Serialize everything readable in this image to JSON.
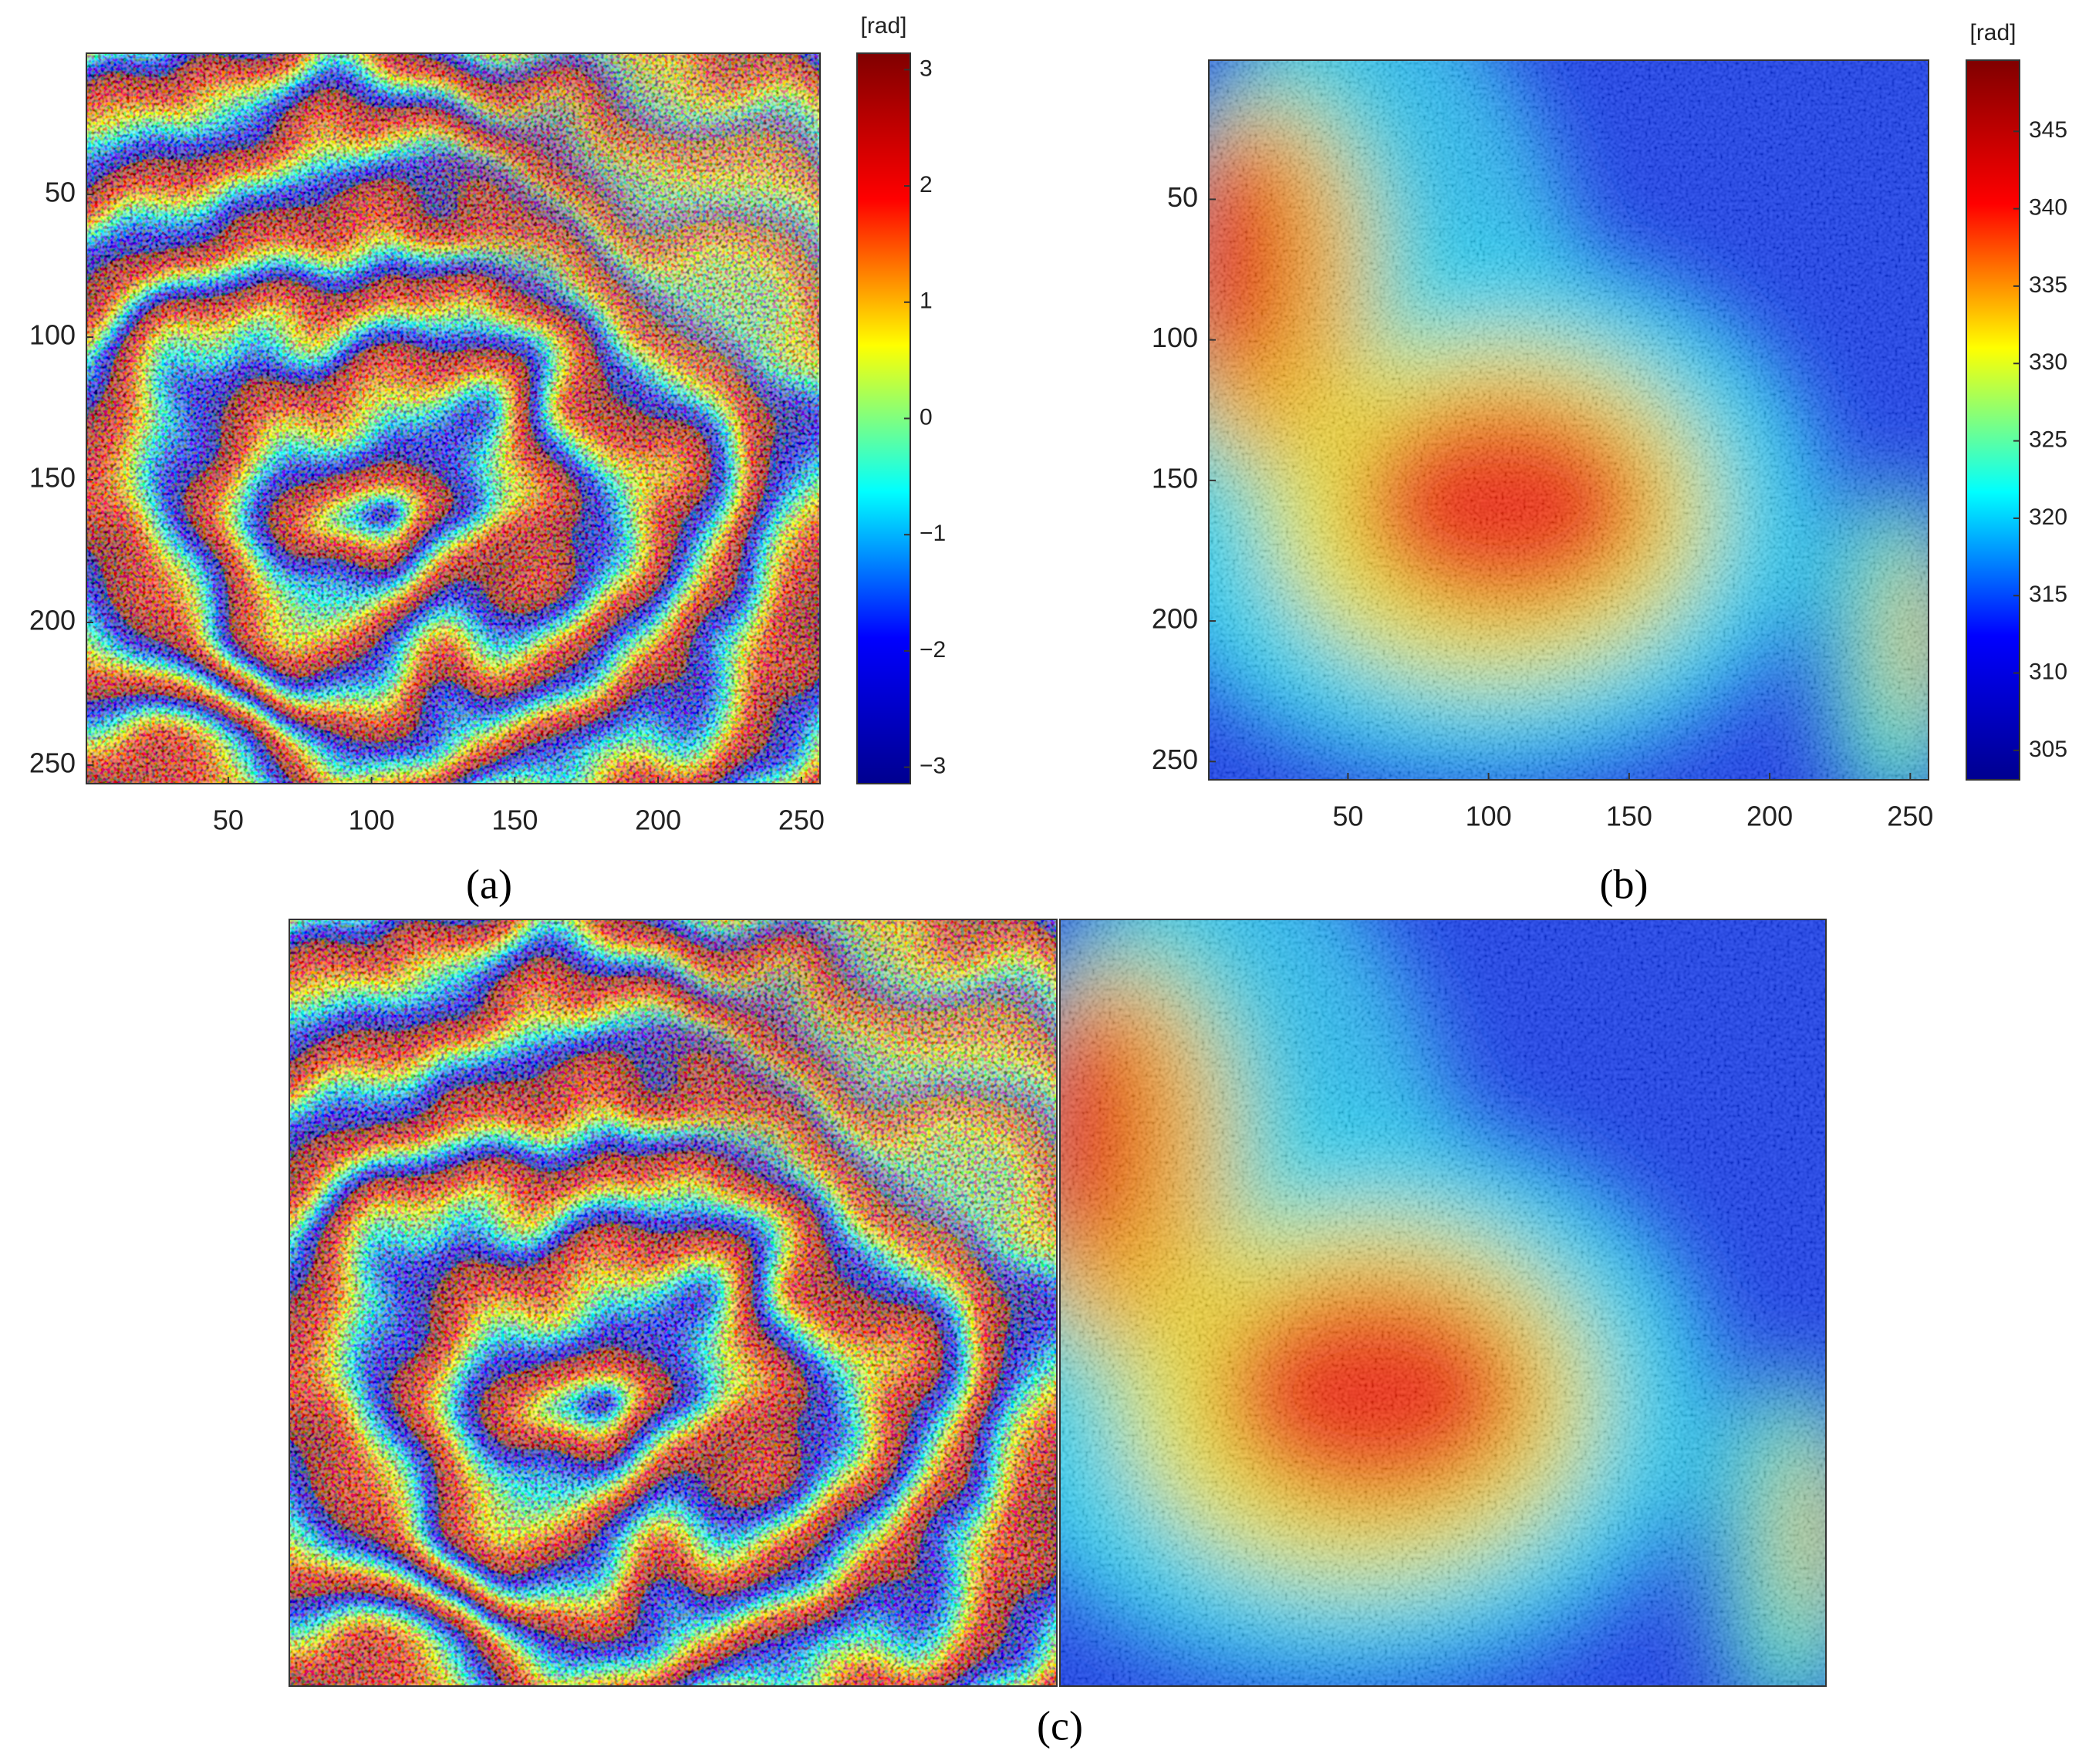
{
  "chart_data": [
    {
      "type": "image",
      "label": "(a)",
      "colorbar_label": "[rad]",
      "colormap": "jet",
      "xlim": [
        0.5,
        256.5
      ],
      "ylim": [
        0.5,
        256.5
      ],
      "xticks": [
        50,
        100,
        150,
        200,
        250
      ],
      "yticks": [
        50,
        100,
        150,
        200,
        250
      ],
      "clim": [
        -3.1416,
        3.1416
      ],
      "cticks": [
        {
          "value": -3,
          "label": "−3"
        },
        {
          "value": -2,
          "label": "−2"
        },
        {
          "value": -1,
          "label": "−1"
        },
        0,
        1,
        2,
        3
      ]
    },
    {
      "type": "image",
      "label": "(b)",
      "colorbar_label": "[rad]",
      "colormap": "jet",
      "xlim": [
        0.5,
        256.5
      ],
      "ylim": [
        0.5,
        256.5
      ],
      "xticks": [
        50,
        100,
        150,
        200,
        250
      ],
      "yticks": [
        50,
        100,
        150,
        200,
        250
      ],
      "clim": [
        303.1,
        349.6
      ],
      "cticks": [
        305,
        310,
        315,
        320,
        325,
        330,
        335,
        340,
        345
      ]
    },
    {
      "type": "image",
      "label": "(c)"
    }
  ]
}
